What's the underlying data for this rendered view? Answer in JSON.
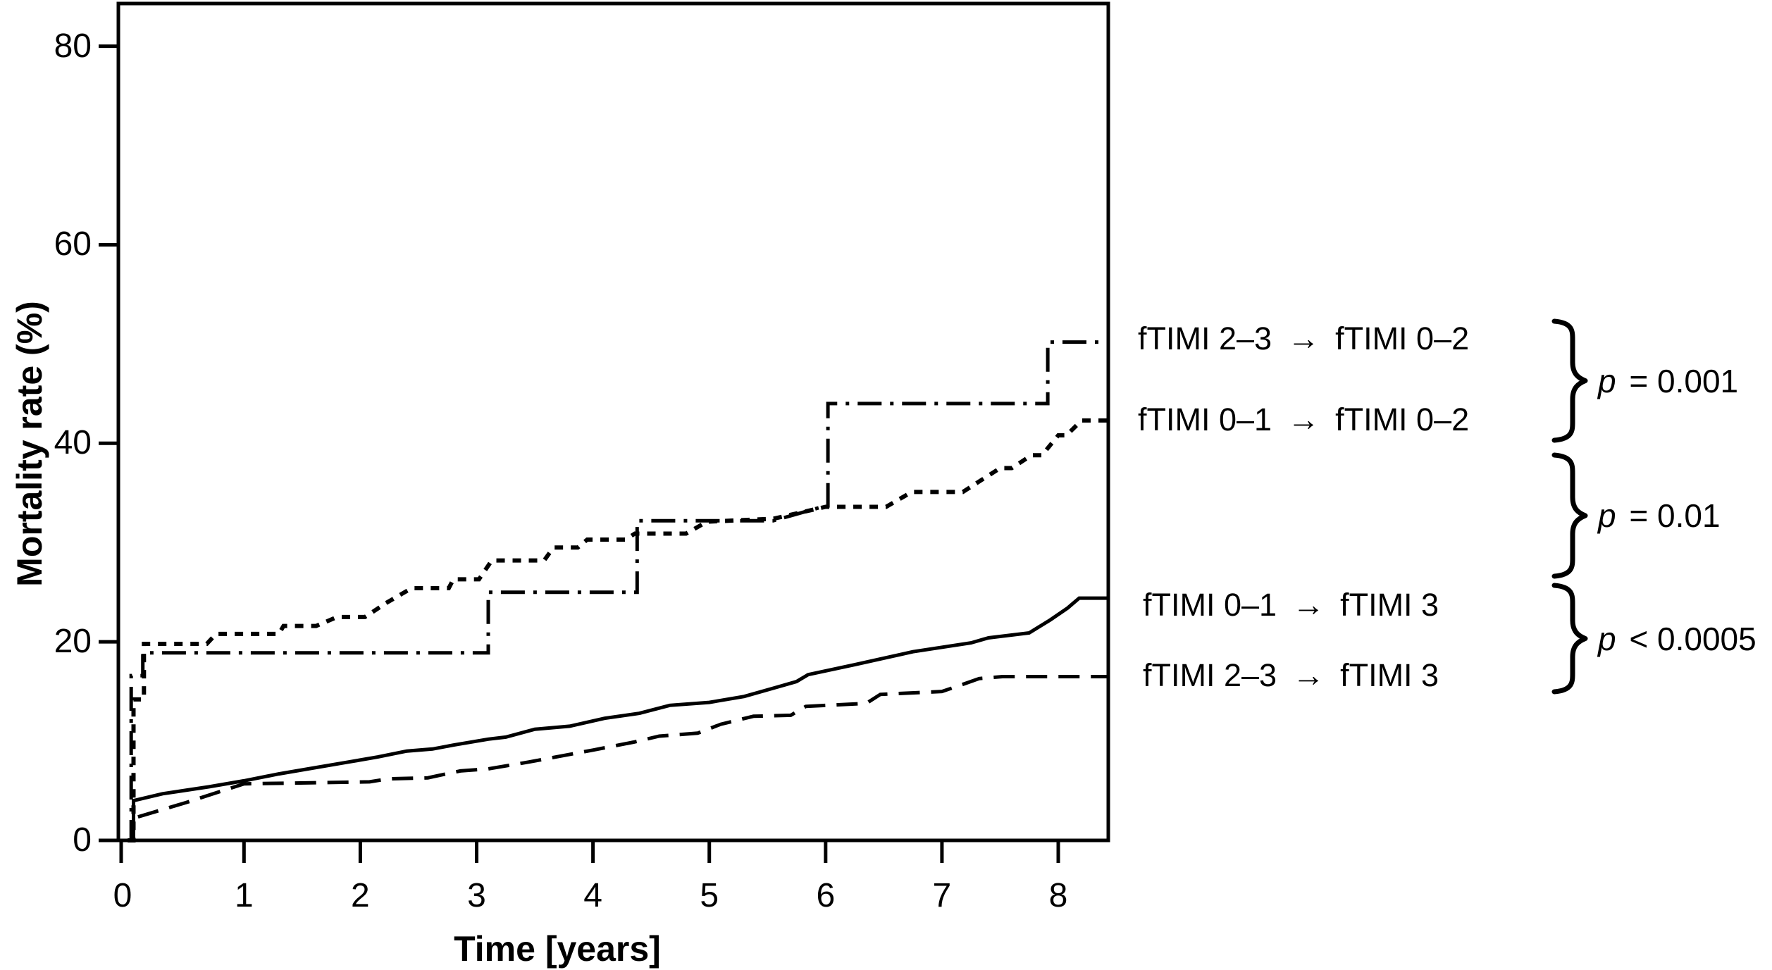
{
  "figure": {
    "background": "#ffffff",
    "ink": "#000000"
  },
  "axes": {
    "x_label": "Time [years]",
    "y_label": "Mortality rate (%)",
    "x_ticks": [
      "0",
      "1",
      "2",
      "3",
      "4",
      "5",
      "6",
      "7",
      "8"
    ],
    "y_ticks": [
      "0",
      "20",
      "40",
      "60",
      "80"
    ]
  },
  "legend": {
    "rows": [
      {
        "from": "fTIMI 2–3",
        "arrow": "→",
        "to": "fTIMI 0–2"
      },
      {
        "from": "fTIMI 0–1",
        "arrow": "→",
        "to": "fTIMI 0–2"
      },
      {
        "from": "fTIMI 0–1",
        "arrow": "→",
        "to": "fTIMI 3"
      },
      {
        "from": "fTIMI 2–3",
        "arrow": "→",
        "to": "fTIMI 3"
      }
    ],
    "p_values": [
      {
        "p": "p",
        "rel": " = ",
        "value": "0.001"
      },
      {
        "p": "p",
        "rel": " = ",
        "value": "0.01"
      },
      {
        "p": "p",
        "rel": " < ",
        "value": "0.0005"
      }
    ]
  },
  "chart_data": {
    "type": "line",
    "title": "",
    "xlabel": "Time [years]",
    "ylabel": "Mortality rate (%)",
    "xlim": [
      -0.08,
      8.43
    ],
    "ylim": [
      0,
      84.3
    ],
    "x_tick_values": [
      0,
      1,
      2,
      3,
      4,
      5,
      6,
      7,
      8
    ],
    "y_tick_values": [
      0,
      20,
      40,
      60,
      80
    ],
    "grid": false,
    "legend_position": "right-of-plot, labels aligned with curve endpoints",
    "series": [
      {
        "name": "fTIMI 2–3 → fTIMI 0–2",
        "style": "dashdot",
        "p_group": "p = 0.001 (vs fTIMI 0–1 → fTIMI 0–2)",
        "points": [
          [
            0,
            0
          ],
          [
            0.03,
            0
          ],
          [
            0.03,
            16.6
          ],
          [
            0.13,
            16.6
          ],
          [
            0.13,
            18.9
          ],
          [
            3.1,
            18.9
          ],
          [
            3.1,
            25.0
          ],
          [
            4.38,
            25.0
          ],
          [
            4.38,
            32.2
          ],
          [
            5.55,
            32.2
          ],
          [
            6.0,
            33.7
          ],
          [
            6.02,
            33.7
          ],
          [
            6.02,
            44.0
          ],
          [
            7.91,
            44.0
          ],
          [
            7.91,
            50.2
          ],
          [
            8.43,
            50.2
          ]
        ]
      },
      {
        "name": "fTIMI 0–1 → fTIMI 0–2",
        "style": "dotted",
        "p_group": "p = 0.01",
        "points": [
          [
            0,
            0
          ],
          [
            0.05,
            0
          ],
          [
            0.05,
            14.2
          ],
          [
            0.14,
            14.2
          ],
          [
            0.14,
            19.8
          ],
          [
            0.68,
            19.8
          ],
          [
            0.76,
            20.8
          ],
          [
            1.3,
            20.8
          ],
          [
            1.34,
            21.6
          ],
          [
            1.62,
            21.6
          ],
          [
            1.8,
            22.5
          ],
          [
            2.04,
            22.5
          ],
          [
            2.22,
            23.9
          ],
          [
            2.44,
            25.4
          ],
          [
            2.76,
            25.4
          ],
          [
            2.8,
            26.3
          ],
          [
            3.02,
            26.3
          ],
          [
            3.13,
            28.2
          ],
          [
            3.58,
            28.2
          ],
          [
            3.66,
            29.5
          ],
          [
            3.87,
            29.5
          ],
          [
            3.95,
            30.3
          ],
          [
            4.28,
            30.3
          ],
          [
            4.36,
            30.9
          ],
          [
            4.8,
            30.9
          ],
          [
            4.98,
            32.1
          ],
          [
            5.55,
            32.4
          ],
          [
            6.0,
            33.6
          ],
          [
            6.52,
            33.6
          ],
          [
            6.74,
            35.1
          ],
          [
            7.18,
            35.1
          ],
          [
            7.34,
            36.3
          ],
          [
            7.5,
            37.5
          ],
          [
            7.6,
            37.5
          ],
          [
            7.77,
            38.8
          ],
          [
            7.86,
            38.8
          ],
          [
            8.0,
            40.8
          ],
          [
            8.07,
            40.8
          ],
          [
            8.2,
            42.3
          ],
          [
            8.43,
            42.3
          ]
        ]
      },
      {
        "name": "fTIMI 0–1 → fTIMI 3",
        "style": "solid",
        "p_group": "p < 0.0005 (vs fTIMI 2–3 → fTIMI 3)",
        "points": [
          [
            0,
            0
          ],
          [
            0.05,
            0
          ],
          [
            0.05,
            4.0
          ],
          [
            0.3,
            4.7
          ],
          [
            0.7,
            5.4
          ],
          [
            1.0,
            6.0
          ],
          [
            1.3,
            6.7
          ],
          [
            1.6,
            7.3
          ],
          [
            1.9,
            7.9
          ],
          [
            2.15,
            8.4
          ],
          [
            2.4,
            9.0
          ],
          [
            2.62,
            9.2
          ],
          [
            2.8,
            9.6
          ],
          [
            3.1,
            10.2
          ],
          [
            3.25,
            10.4
          ],
          [
            3.5,
            11.2
          ],
          [
            3.8,
            11.5
          ],
          [
            4.1,
            12.3
          ],
          [
            4.4,
            12.8
          ],
          [
            4.66,
            13.6
          ],
          [
            5.0,
            13.9
          ],
          [
            5.3,
            14.5
          ],
          [
            5.6,
            15.5
          ],
          [
            5.75,
            16.0
          ],
          [
            5.85,
            16.7
          ],
          [
            6.25,
            17.7
          ],
          [
            6.75,
            19.0
          ],
          [
            7.25,
            19.9
          ],
          [
            7.4,
            20.4
          ],
          [
            7.75,
            20.9
          ],
          [
            7.93,
            22.2
          ],
          [
            8.08,
            23.4
          ],
          [
            8.18,
            24.4
          ],
          [
            8.43,
            24.4
          ]
        ]
      },
      {
        "name": "fTIMI 2–3 → fTIMI 3",
        "style": "dashed",
        "p_group": "p < 0.0005",
        "points": [
          [
            0,
            0
          ],
          [
            0.04,
            0
          ],
          [
            0.04,
            2.2
          ],
          [
            0.5,
            3.8
          ],
          [
            1.0,
            5.7
          ],
          [
            2.08,
            5.9
          ],
          [
            2.24,
            6.2
          ],
          [
            2.58,
            6.3
          ],
          [
            2.86,
            7.0
          ],
          [
            3.1,
            7.2
          ],
          [
            3.45,
            7.9
          ],
          [
            4.0,
            9.1
          ],
          [
            4.35,
            9.9
          ],
          [
            4.57,
            10.5
          ],
          [
            4.9,
            10.8
          ],
          [
            5.1,
            11.7
          ],
          [
            5.38,
            12.5
          ],
          [
            5.7,
            12.6
          ],
          [
            5.83,
            13.5
          ],
          [
            6.35,
            13.8
          ],
          [
            6.47,
            14.7
          ],
          [
            7.0,
            15.0
          ],
          [
            7.15,
            15.6
          ],
          [
            7.32,
            16.3
          ],
          [
            7.52,
            16.5
          ],
          [
            8.43,
            16.5
          ]
        ]
      }
    ],
    "brace_groups": [
      {
        "rows": [
          0,
          1
        ],
        "label": "p = 0.001"
      },
      {
        "rows": [
          1,
          2
        ],
        "label": "p = 0.01"
      },
      {
        "rows": [
          2,
          3
        ],
        "label": "p < 0.0005"
      }
    ]
  }
}
